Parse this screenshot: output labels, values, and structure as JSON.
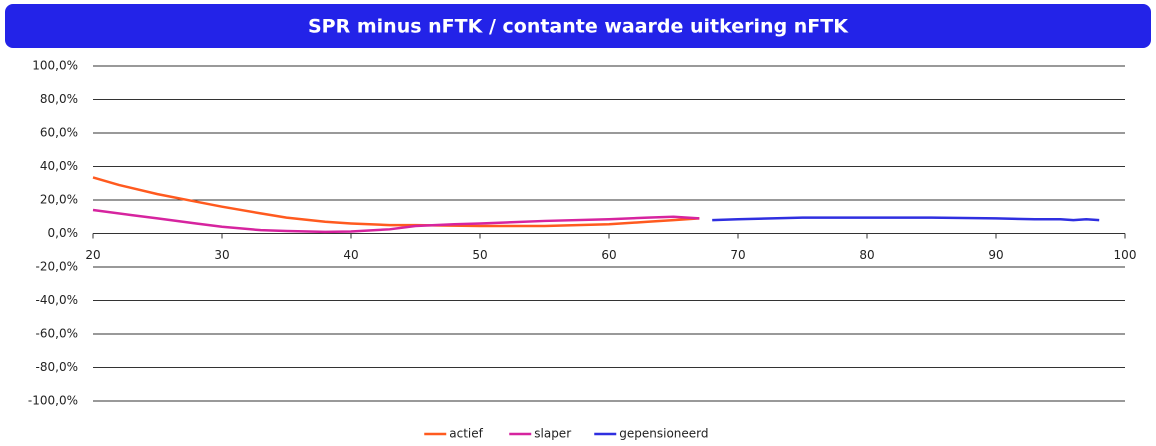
{
  "chart_data": {
    "type": "line",
    "title": "SPR minus nFTK / contante waarde uitkering nFTK",
    "xlim": [
      20,
      100
    ],
    "xticks": [
      20,
      30,
      40,
      50,
      60,
      70,
      80,
      90,
      100
    ],
    "ylim": [
      -100,
      100
    ],
    "yticks": [
      {
        "value": -100,
        "label": "-100,0%"
      },
      {
        "value": -80,
        "label": "-80,0%"
      },
      {
        "value": -60,
        "label": "-60,0%"
      },
      {
        "value": -40,
        "label": "-40,0%"
      },
      {
        "value": -20,
        "label": "-20,0%"
      },
      {
        "value": 0,
        "label": "0,0%"
      },
      {
        "value": 20,
        "label": "20,0%"
      },
      {
        "value": 40,
        "label": "40,0%"
      },
      {
        "value": 60,
        "label": "60,0%"
      },
      {
        "value": 80,
        "label": "80,0%"
      },
      {
        "value": 100,
        "label": "100,0%"
      }
    ],
    "grid": true,
    "legend": "bottom",
    "series": [
      {
        "name": "actief",
        "color": "#ff5a1f",
        "x": [
          20,
          22,
          25,
          28,
          30,
          33,
          35,
          38,
          40,
          43,
          45,
          50,
          55,
          60,
          63,
          65,
          67
        ],
        "values": [
          33.5,
          29,
          23.5,
          19,
          16,
          12,
          9.5,
          7,
          6,
          5,
          5,
          4.5,
          4.5,
          5.5,
          7,
          8,
          9
        ]
      },
      {
        "name": "slaper",
        "color": "#d6249f",
        "x": [
          20,
          23,
          25,
          28,
          30,
          33,
          35,
          38,
          40,
          43,
          45,
          48,
          50,
          55,
          60,
          63,
          65,
          67
        ],
        "values": [
          14,
          11,
          9,
          6,
          4,
          2,
          1.5,
          1,
          1.2,
          2.5,
          4.5,
          5.5,
          6,
          7.5,
          8.5,
          9.5,
          10,
          9
        ]
      },
      {
        "name": "gepensioneerd",
        "color": "#2f2fe0",
        "x": [
          68,
          70,
          75,
          80,
          85,
          90,
          93,
          95,
          96,
          97,
          98
        ],
        "values": [
          8,
          8.5,
          9.5,
          9.5,
          9.5,
          9,
          8.5,
          8.5,
          8,
          8.5,
          8
        ]
      }
    ]
  }
}
